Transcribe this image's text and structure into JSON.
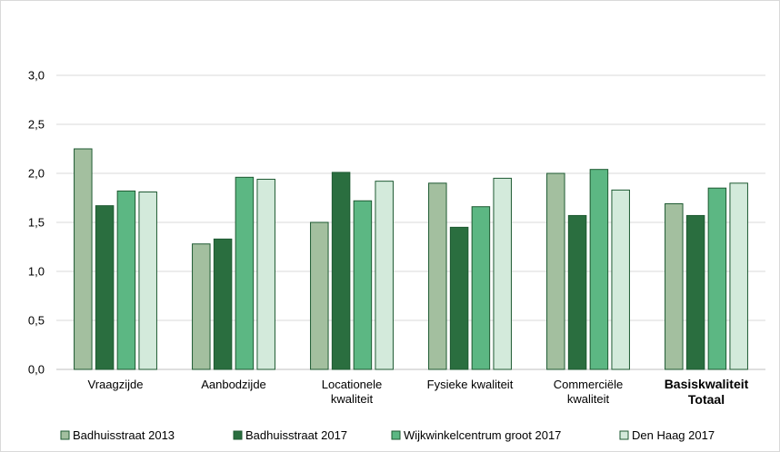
{
  "chart_data": {
    "type": "bar",
    "title": "",
    "xlabel": "",
    "ylabel": "",
    "ylim": [
      0,
      3.0
    ],
    "yticks": [
      "0,0",
      "0,5",
      "1,0",
      "1,5",
      "2,0",
      "2,5",
      "3,0"
    ],
    "grid": true,
    "legend_position": "bottom",
    "categories": [
      [
        "Vraagzijde"
      ],
      [
        "Aanbodzijde"
      ],
      [
        "Locationele",
        "kwaliteit"
      ],
      [
        "Fysieke kwaliteit"
      ],
      [
        "Commerciële",
        "kwaliteit"
      ],
      [
        "Basiskwaliteit",
        "Totaal"
      ]
    ],
    "bold_categories": [
      5
    ],
    "series": [
      {
        "name": "Badhuisstraat 2013",
        "color": "#a3bf9f",
        "values": [
          2.25,
          1.28,
          1.5,
          1.9,
          2.0,
          1.69
        ]
      },
      {
        "name": "Badhuisstraat 2017",
        "color": "#2a6e3f",
        "values": [
          1.67,
          1.33,
          2.01,
          1.45,
          1.57,
          1.57
        ]
      },
      {
        "name": "Wijkwinkelcentrum groot 2017",
        "color": "#5cb783",
        "values": [
          1.82,
          1.96,
          1.72,
          1.66,
          2.04,
          1.85
        ]
      },
      {
        "name": "Den Haag 2017",
        "color": "#d3eadb",
        "values": [
          1.81,
          1.94,
          1.92,
          1.95,
          1.83,
          1.9
        ]
      }
    ]
  }
}
